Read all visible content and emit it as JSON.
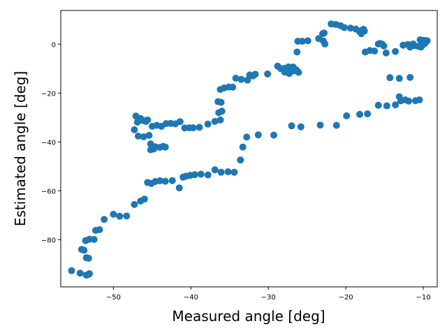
{
  "chart_data": {
    "type": "scatter",
    "title": "",
    "xlabel": "Measured angle [deg]",
    "ylabel": "Estimated angle [deg]",
    "xlim": [
      -56.8,
      -8.2
    ],
    "ylim": [
      -99.3,
      13.8
    ],
    "xticks": [
      -50,
      -40,
      -30,
      -20,
      -10
    ],
    "xtick_labels": [
      "−50",
      "−40",
      "−30",
      "−20",
      "−10"
    ],
    "yticks": [
      -80,
      -60,
      -40,
      -20,
      0
    ],
    "ytick_labels": [
      "−80",
      "−60",
      "−40",
      "−20",
      "0"
    ],
    "grid": false,
    "marker_color": "#1f77b4",
    "series": [
      {
        "points": [
          [
            -55.4,
            -92.7
          ],
          [
            -54.3,
            -93.7
          ],
          [
            -53.5,
            -94.5
          ],
          [
            -53.2,
            -94.2
          ],
          [
            -53.1,
            -93.9
          ],
          [
            -54.1,
            -84.0
          ],
          [
            -53.8,
            -84.3
          ],
          [
            -53.5,
            -87.4
          ],
          [
            -53.2,
            -87.6
          ],
          [
            -53.6,
            -80.4
          ],
          [
            -53.1,
            -79.8
          ],
          [
            -52.5,
            -79.9
          ],
          [
            -52.3,
            -76.2
          ],
          [
            -51.8,
            -75.9
          ],
          [
            -51.2,
            -71.7
          ],
          [
            -50.0,
            -69.6
          ],
          [
            -49.2,
            -70.4
          ],
          [
            -48.3,
            -70.3
          ],
          [
            -47.3,
            -65.6
          ],
          [
            -46.5,
            -64.2
          ],
          [
            -46.0,
            -63.4
          ],
          [
            -45.6,
            -56.6
          ],
          [
            -45.1,
            -57.0
          ],
          [
            -44.6,
            -56.2
          ],
          [
            -44.0,
            -55.9
          ],
          [
            -43.3,
            -56.1
          ],
          [
            -42.4,
            -55.8
          ],
          [
            -41.5,
            -58.8
          ],
          [
            -41.0,
            -54.4
          ],
          [
            -40.6,
            -54.0
          ],
          [
            -40.1,
            -53.7
          ],
          [
            -39.5,
            -53.4
          ],
          [
            -38.7,
            -53.2
          ],
          [
            -37.8,
            -53.5
          ],
          [
            -36.9,
            -51.4
          ],
          [
            -36.1,
            -52.4
          ],
          [
            -35.2,
            -52.2
          ],
          [
            -34.4,
            -52.4
          ],
          [
            -33.6,
            -47.4
          ],
          [
            -33.3,
            -42.1
          ],
          [
            -32.8,
            -38.0
          ],
          [
            -31.3,
            -37.1
          ],
          [
            -29.3,
            -37.2
          ],
          [
            -27.0,
            -33.4
          ],
          [
            -25.8,
            -33.8
          ],
          [
            -23.3,
            -33.1
          ],
          [
            -21.2,
            -33.2
          ],
          [
            -19.9,
            -29.3
          ],
          [
            -18.2,
            -28.7
          ],
          [
            -17.2,
            -28.5
          ],
          [
            -15.8,
            -25.0
          ],
          [
            -14.7,
            -25.2
          ],
          [
            -13.6,
            -24.8
          ],
          [
            -13.1,
            -21.5
          ],
          [
            -12.9,
            -23.2
          ],
          [
            -12.3,
            -22.8
          ],
          [
            -11.9,
            -23.3
          ],
          [
            -11.0,
            -23.1
          ],
          [
            -10.5,
            -22.8
          ],
          [
            -47.1,
            -29.4
          ],
          [
            -46.9,
            -31.9
          ],
          [
            -46.5,
            -30.4
          ],
          [
            -46.2,
            -31.2
          ],
          [
            -45.8,
            -31.6
          ],
          [
            -45.6,
            -31.0
          ],
          [
            -45.0,
            -33.6
          ],
          [
            -44.4,
            -33.2
          ],
          [
            -43.8,
            -33.6
          ],
          [
            -43.2,
            -32.5
          ],
          [
            -42.6,
            -32.4
          ],
          [
            -42.0,
            -32.6
          ],
          [
            -41.4,
            -31.7
          ],
          [
            -40.8,
            -34.3
          ],
          [
            -40.2,
            -34.2
          ],
          [
            -39.7,
            -34.2
          ],
          [
            -38.9,
            -34.0
          ],
          [
            -37.8,
            -32.7
          ],
          [
            -36.9,
            -31.6
          ],
          [
            -36.2,
            -31.0
          ],
          [
            -36.4,
            -28.0
          ],
          [
            -36.0,
            -27.4
          ],
          [
            -36.5,
            -23.5
          ],
          [
            -36.1,
            -23.8
          ],
          [
            -47.3,
            -35.0
          ],
          [
            -46.8,
            -37.6
          ],
          [
            -46.1,
            -37.9
          ],
          [
            -45.4,
            -37.3
          ],
          [
            -45.2,
            -40.8
          ],
          [
            -44.6,
            -42.0
          ],
          [
            -44.0,
            -42.2
          ],
          [
            -43.6,
            -41.8
          ],
          [
            -43.3,
            -42.1
          ],
          [
            -45.2,
            -43.2
          ],
          [
            -44.8,
            -42.9
          ],
          [
            -36.2,
            -18.5
          ],
          [
            -35.7,
            -17.9
          ],
          [
            -35.1,
            -17.5
          ],
          [
            -34.6,
            -17.6
          ],
          [
            -34.2,
            -13.9
          ],
          [
            -33.5,
            -14.4
          ],
          [
            -32.7,
            -14.7
          ],
          [
            -32.4,
            -12.6
          ],
          [
            -32.0,
            -13.0
          ],
          [
            -31.7,
            -12.3
          ],
          [
            -30.1,
            -12.2
          ],
          [
            -28.8,
            -9.0
          ],
          [
            -28.4,
            -10.0
          ],
          [
            -27.9,
            -11.4
          ],
          [
            -27.6,
            -10.9
          ],
          [
            -27.4,
            -9.3
          ],
          [
            -26.8,
            -9.3
          ],
          [
            -26.4,
            -10.5
          ],
          [
            -26.1,
            -11.5
          ],
          [
            -26.7,
            -10.9
          ],
          [
            -27.3,
            -12.0
          ],
          [
            -27.9,
            -9.9
          ],
          [
            -26.3,
            -3.2
          ],
          [
            -26.2,
            1.2
          ],
          [
            -25.6,
            1.2
          ],
          [
            -24.9,
            1.4
          ],
          [
            -23.5,
            2.3
          ],
          [
            -23.0,
            4.3
          ],
          [
            -22.8,
            4.6
          ],
          [
            -22.9,
            1.3
          ],
          [
            -22.7,
            0.1
          ],
          [
            -21.9,
            8.3
          ],
          [
            -21.3,
            8.1
          ],
          [
            -20.7,
            7.6
          ],
          [
            -20.2,
            6.8
          ],
          [
            -19.4,
            6.6
          ],
          [
            -18.7,
            6.2
          ],
          [
            -18.2,
            5.1
          ],
          [
            -18.0,
            4.3
          ],
          [
            -17.9,
            5.8
          ],
          [
            -17.7,
            6.1
          ],
          [
            -17.6,
            5.4
          ],
          [
            -17.5,
            -3.2
          ],
          [
            -16.9,
            -2.6
          ],
          [
            -16.3,
            -2.8
          ],
          [
            -15.8,
            0.1
          ],
          [
            -15.6,
            0.3
          ],
          [
            -15.3,
            0.0
          ],
          [
            -15.1,
            -0.7
          ],
          [
            -14.8,
            -3.6
          ],
          [
            -13.6,
            -3.0
          ],
          [
            -12.6,
            -0.4
          ],
          [
            -12.0,
            -0.1
          ],
          [
            -11.7,
            -1.2
          ],
          [
            -11.3,
            0.1
          ],
          [
            -11.1,
            -0.6
          ],
          [
            -10.6,
            -0.9
          ],
          [
            -10.4,
            1.8
          ],
          [
            -10.1,
            1.4
          ],
          [
            -9.9,
            1.6
          ],
          [
            -9.8,
            0.3
          ],
          [
            -9.6,
            1.1
          ],
          [
            -9.5,
            1.4
          ],
          [
            -10.3,
            -1.2
          ],
          [
            -10.1,
            -0.4
          ],
          [
            -14.3,
            -13.7
          ],
          [
            -13.1,
            -14.0
          ],
          [
            -11.7,
            -13.6
          ]
        ]
      }
    ]
  }
}
